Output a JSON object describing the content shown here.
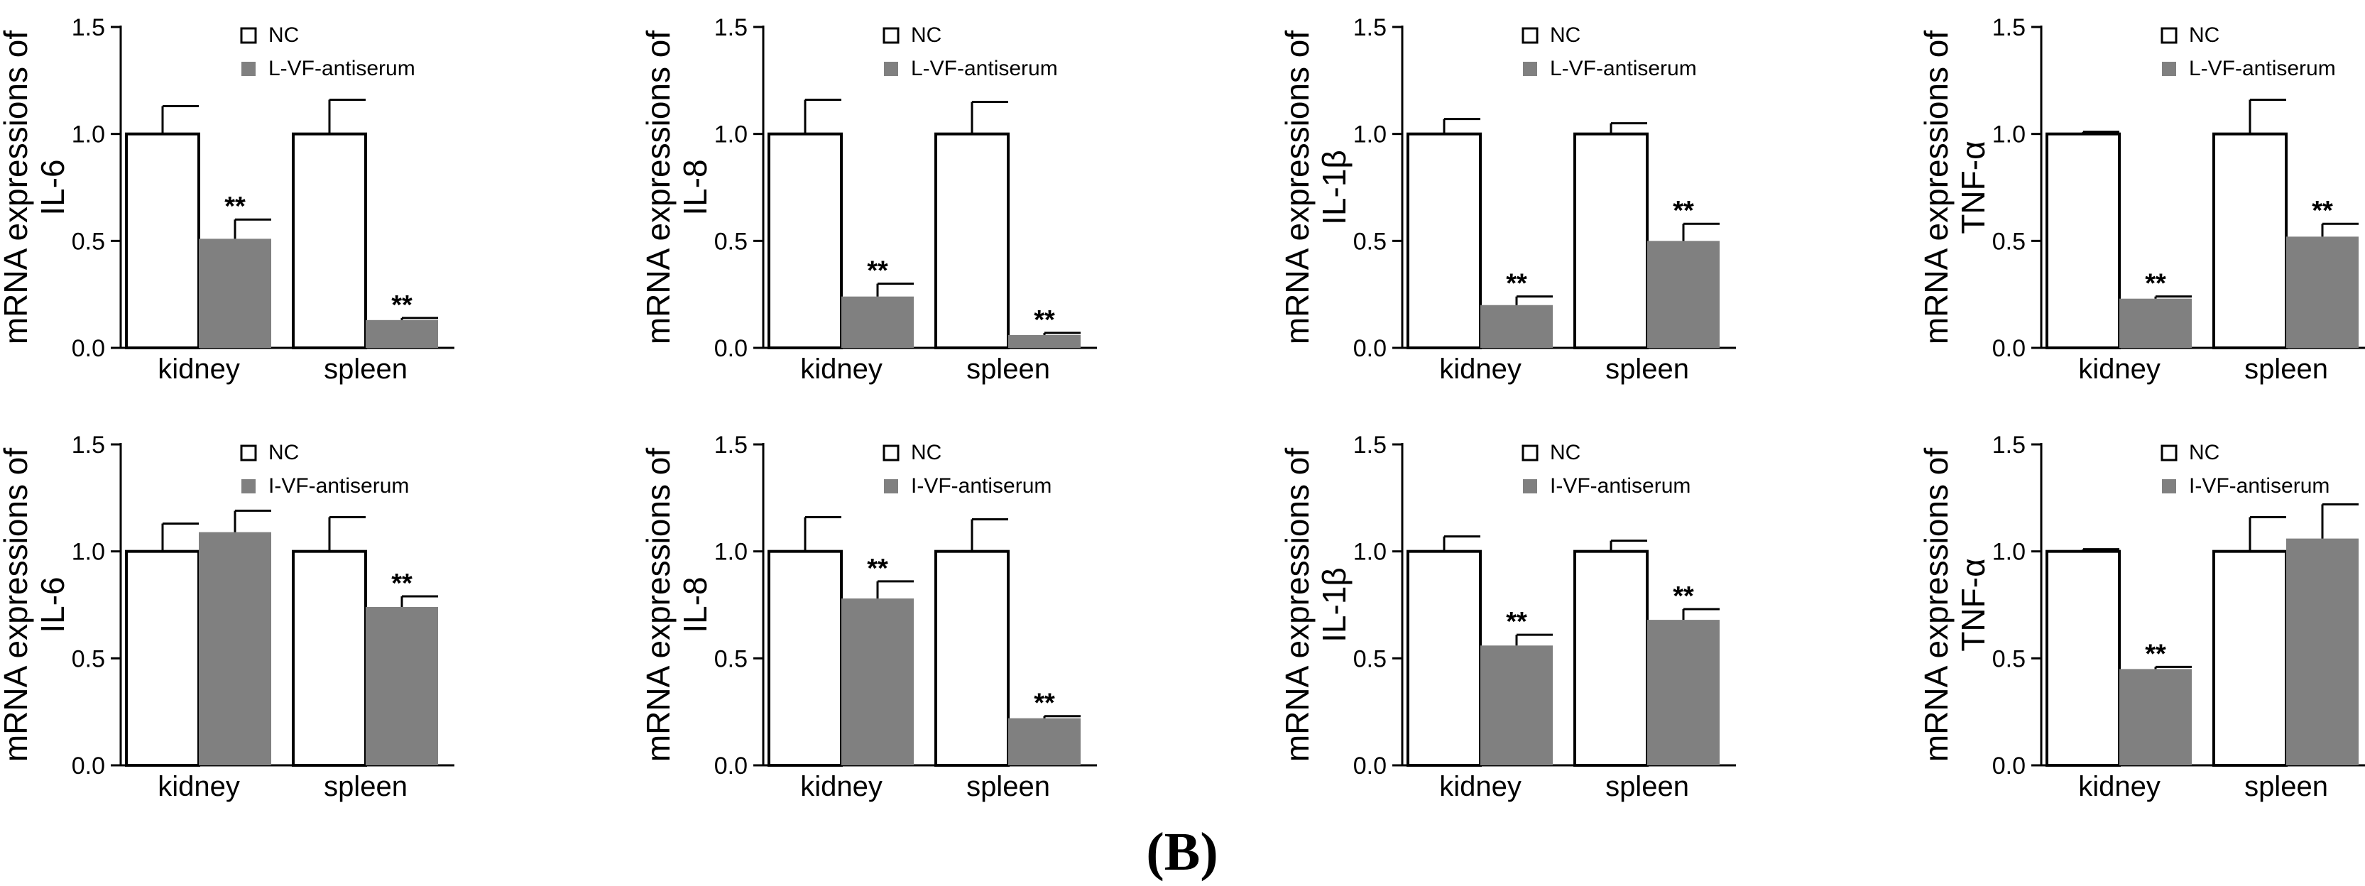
{
  "panel_label": "(B)",
  "colors": {
    "nc": "#ffffff",
    "treated": "#808080",
    "axis": "#000000"
  },
  "chart_data": [
    {
      "type": "bar",
      "title": "",
      "xlabel": "",
      "ylabel_line1": "mRNA expressions of",
      "ylabel_line2": "IL-6",
      "categories": [
        "kidney",
        "spleen"
      ],
      "ylim": [
        0,
        1.5
      ],
      "yticks": [
        "0.0",
        "0.5",
        "1.0",
        "1.5"
      ],
      "series": [
        {
          "name": "NC",
          "values": [
            1.0,
            1.0
          ],
          "errors": [
            0.13,
            0.16
          ]
        },
        {
          "name": "L-VF-antiserum",
          "values": [
            0.51,
            0.13
          ],
          "errors": [
            0.09,
            0.01
          ]
        }
      ],
      "annotations": [
        {
          "series": 1,
          "category": 0,
          "text": "**"
        },
        {
          "series": 1,
          "category": 1,
          "text": "**"
        }
      ]
    },
    {
      "type": "bar",
      "title": "",
      "xlabel": "",
      "ylabel_line1": "mRNA expressions of",
      "ylabel_line2": "IL-8",
      "categories": [
        "kidney",
        "spleen"
      ],
      "ylim": [
        0,
        1.5
      ],
      "yticks": [
        "0.0",
        "0.5",
        "1.0",
        "1.5"
      ],
      "series": [
        {
          "name": "NC",
          "values": [
            1.0,
            1.0
          ],
          "errors": [
            0.16,
            0.15
          ]
        },
        {
          "name": "L-VF-antiserum",
          "values": [
            0.24,
            0.06
          ],
          "errors": [
            0.06,
            0.01
          ]
        }
      ],
      "annotations": [
        {
          "series": 1,
          "category": 0,
          "text": "**"
        },
        {
          "series": 1,
          "category": 1,
          "text": "**"
        }
      ]
    },
    {
      "type": "bar",
      "title": "",
      "xlabel": "",
      "ylabel_line1": "mRNA expressions of",
      "ylabel_line2": "IL-1β",
      "categories": [
        "kidney",
        "spleen"
      ],
      "ylim": [
        0,
        1.5
      ],
      "yticks": [
        "0.0",
        "0.5",
        "1.0",
        "1.5"
      ],
      "series": [
        {
          "name": "NC",
          "values": [
            1.0,
            1.0
          ],
          "errors": [
            0.07,
            0.05
          ]
        },
        {
          "name": "L-VF-antiserum",
          "values": [
            0.2,
            0.5
          ],
          "errors": [
            0.04,
            0.08
          ]
        }
      ],
      "annotations": [
        {
          "series": 1,
          "category": 0,
          "text": "**"
        },
        {
          "series": 1,
          "category": 1,
          "text": "**"
        }
      ]
    },
    {
      "type": "bar",
      "title": "",
      "xlabel": "",
      "ylabel_line1": "mRNA expressions of",
      "ylabel_line2": "TNF-α",
      "categories": [
        "kidney",
        "spleen"
      ],
      "ylim": [
        0,
        1.5
      ],
      "yticks": [
        "0.0",
        "0.5",
        "1.0",
        "1.5"
      ],
      "series": [
        {
          "name": "NC",
          "values": [
            1.0,
            1.0
          ],
          "errors": [
            0.01,
            0.16
          ]
        },
        {
          "name": "L-VF-antiserum",
          "values": [
            0.23,
            0.52
          ],
          "errors": [
            0.01,
            0.06
          ]
        }
      ],
      "annotations": [
        {
          "series": 1,
          "category": 0,
          "text": "**"
        },
        {
          "series": 1,
          "category": 1,
          "text": "**"
        }
      ]
    },
    {
      "type": "bar",
      "title": "",
      "xlabel": "",
      "ylabel_line1": "mRNA expressions of",
      "ylabel_line2": "IL-6",
      "categories": [
        "kidney",
        "spleen"
      ],
      "ylim": [
        0,
        1.5
      ],
      "yticks": [
        "0.0",
        "0.5",
        "1.0",
        "1.5"
      ],
      "series": [
        {
          "name": "NC",
          "values": [
            1.0,
            1.0
          ],
          "errors": [
            0.13,
            0.16
          ]
        },
        {
          "name": "I-VF-antiserum",
          "values": [
            1.09,
            0.74
          ],
          "errors": [
            0.1,
            0.05
          ]
        }
      ],
      "annotations": [
        {
          "series": 1,
          "category": 1,
          "text": "**"
        }
      ]
    },
    {
      "type": "bar",
      "title": "",
      "xlabel": "",
      "ylabel_line1": "mRNA expressions of",
      "ylabel_line2": "IL-8",
      "categories": [
        "kidney",
        "spleen"
      ],
      "ylim": [
        0,
        1.5
      ],
      "yticks": [
        "0.0",
        "0.5",
        "1.0",
        "1.5"
      ],
      "series": [
        {
          "name": "NC",
          "values": [
            1.0,
            1.0
          ],
          "errors": [
            0.16,
            0.15
          ]
        },
        {
          "name": "I-VF-antiserum",
          "values": [
            0.78,
            0.22
          ],
          "errors": [
            0.08,
            0.01
          ]
        }
      ],
      "annotations": [
        {
          "series": 1,
          "category": 0,
          "text": "**"
        },
        {
          "series": 1,
          "category": 1,
          "text": "**"
        }
      ]
    },
    {
      "type": "bar",
      "title": "",
      "xlabel": "",
      "ylabel_line1": "mRNA expressions of",
      "ylabel_line2": "IL-1β",
      "categories": [
        "kidney",
        "spleen"
      ],
      "ylim": [
        0,
        1.5
      ],
      "yticks": [
        "0.0",
        "0.5",
        "1.0",
        "1.5"
      ],
      "series": [
        {
          "name": "NC",
          "values": [
            1.0,
            1.0
          ],
          "errors": [
            0.07,
            0.05
          ]
        },
        {
          "name": "I-VF-antiserum",
          "values": [
            0.56,
            0.68
          ],
          "errors": [
            0.05,
            0.05
          ]
        }
      ],
      "annotations": [
        {
          "series": 1,
          "category": 0,
          "text": "**"
        },
        {
          "series": 1,
          "category": 1,
          "text": "**"
        }
      ]
    },
    {
      "type": "bar",
      "title": "",
      "xlabel": "",
      "ylabel_line1": "mRNA expressions of",
      "ylabel_line2": "TNF-α",
      "categories": [
        "kidney",
        "spleen"
      ],
      "ylim": [
        0,
        1.5
      ],
      "yticks": [
        "0.0",
        "0.5",
        "1.0",
        "1.5"
      ],
      "series": [
        {
          "name": "NC",
          "values": [
            1.0,
            1.0
          ],
          "errors": [
            0.01,
            0.16
          ]
        },
        {
          "name": "I-VF-antiserum",
          "values": [
            0.45,
            1.06
          ],
          "errors": [
            0.01,
            0.16
          ]
        }
      ],
      "annotations": [
        {
          "series": 1,
          "category": 0,
          "text": "**"
        }
      ]
    }
  ]
}
